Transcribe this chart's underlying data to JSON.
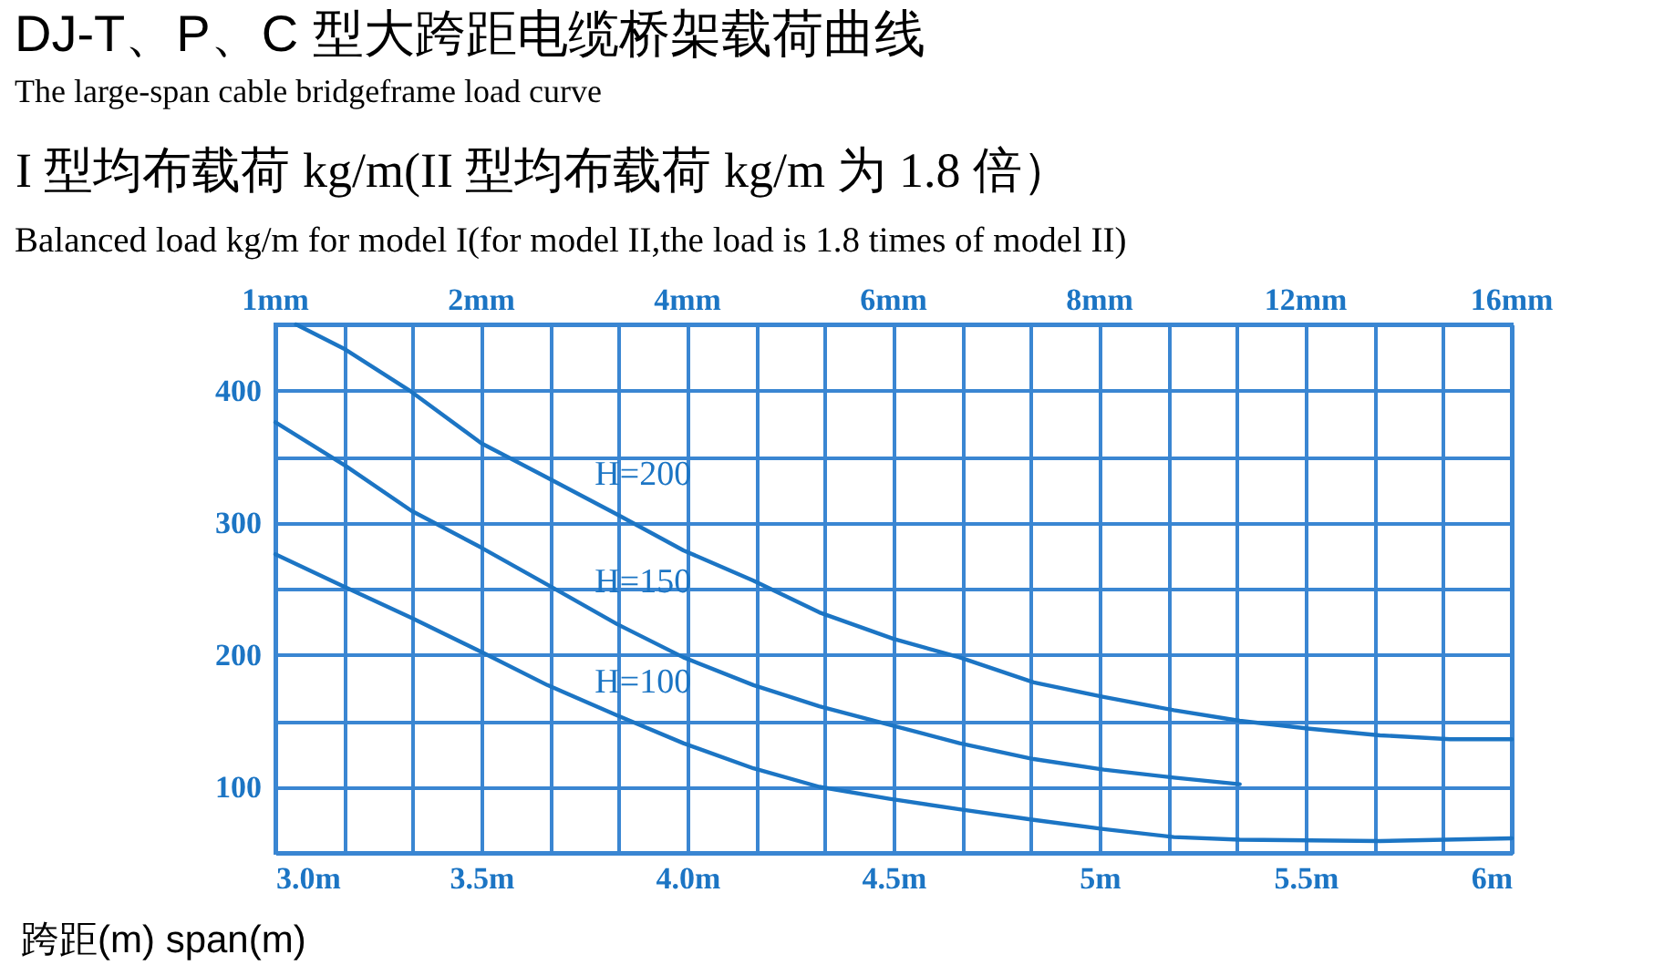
{
  "chart_data": {
    "type": "line",
    "title": "DJ-T、P、C 型大跨距电缆桥架载荷曲线",
    "subtitle": "The large-span cable bridgeframe load curve",
    "ylabel": "I 型均布载荷 kg/m(II 型均布载荷 kg/m 为 1.8 倍）",
    "xlabel": "跨距(m)  span(m)",
    "annotations": [
      "Balanced load kg/m for model I(for model II,the load is 1.8 times of model II)",
      "1mm",
      "2mm",
      "4mm",
      "6mm",
      "8mm",
      "12mm",
      "16mm"
    ],
    "series": [
      {
        "name": "H=200",
        "color": "#1c75c4",
        "x": [
          3.05,
          3.17,
          3.33,
          3.5,
          3.66,
          3.83,
          3.99,
          4.16,
          4.32,
          4.5,
          4.66,
          4.84,
          5.01,
          5.18,
          5.34,
          5.51,
          5.68,
          5.85,
          6.0
        ],
        "values": [
          450,
          431,
          399,
          360,
          334,
          306,
          279,
          256,
          232,
          212,
          198,
          179,
          168,
          158,
          150,
          144,
          139,
          136,
          136
        ]
      },
      {
        "name": "H=150",
        "color": "#1c75c4",
        "x": [
          3.0,
          3.17,
          3.33,
          3.5,
          3.66,
          3.83,
          3.99,
          4.16,
          4.32,
          4.49,
          4.66,
          4.84,
          5.01,
          5.18,
          5.34
        ],
        "values": [
          376,
          343,
          309,
          281,
          253,
          223,
          198,
          177,
          161,
          147,
          133,
          121,
          113,
          107,
          102
        ]
      },
      {
        "name": "H=100",
        "color": "#1c75c4",
        "x": [
          3.0,
          3.17,
          3.33,
          3.5,
          3.66,
          3.83,
          3.99,
          4.16,
          4.32,
          4.49,
          4.66,
          4.84,
          5.01,
          5.18,
          5.34,
          5.68,
          6.0
        ],
        "values": [
          276,
          251,
          228,
          202,
          177,
          154,
          133,
          114,
          100,
          91,
          83,
          75,
          68,
          62,
          60,
          59,
          61
        ]
      }
    ],
    "xlim": [
      3,
      6
    ],
    "xticks": [
      {
        "value": 3,
        "label": "3.0m"
      },
      {
        "value": 3.167,
        "label": null
      },
      {
        "value": 3.333,
        "label": null
      },
      {
        "value": 3.5,
        "label": "3.5m"
      },
      {
        "value": 3.667,
        "label": null
      },
      {
        "value": 3.833,
        "label": null
      },
      {
        "value": 4,
        "label": "4.0m"
      },
      {
        "value": 4.167,
        "label": null
      },
      {
        "value": 4.333,
        "label": null
      },
      {
        "value": 4.5,
        "label": "4.5m"
      },
      {
        "value": 4.667,
        "label": null
      },
      {
        "value": 4.833,
        "label": null
      },
      {
        "value": 5,
        "label": "5m"
      },
      {
        "value": 5.167,
        "label": null
      },
      {
        "value": 5.333,
        "label": null
      },
      {
        "value": 5.5,
        "label": "5.5m"
      },
      {
        "value": 5.667,
        "label": null
      },
      {
        "value": 5.833,
        "label": null
      },
      {
        "value": 6,
        "label": "6m"
      }
    ],
    "ylim": [
      50,
      450
    ],
    "yticks": [
      {
        "value": 50,
        "label": null
      },
      100,
      {
        "value": 150,
        "label": null
      },
      200,
      {
        "value": 250,
        "label": null
      },
      300,
      {
        "value": 350,
        "label": null
      },
      400,
      {
        "value": 450,
        "label": null
      }
    ],
    "grid": true,
    "legend": false
  }
}
